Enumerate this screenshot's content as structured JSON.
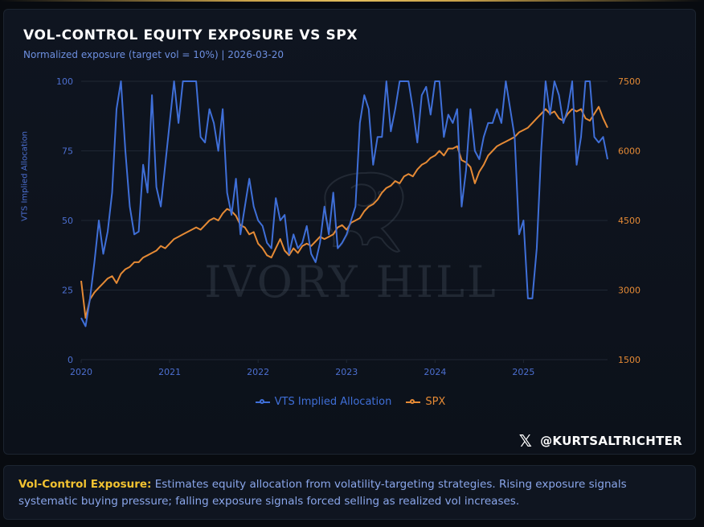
{
  "header": {
    "title": "VOL-CONTROL EQUITY EXPOSURE VS SPX",
    "subtitle": "Normalized exposure (target vol = 10%) | 2026-03-20"
  },
  "watermark": "IVORY HILL",
  "footer": {
    "handle": "@KURTSALTRICHTER",
    "x_icon": "x-logo-icon"
  },
  "note": {
    "key": "Vol-Control Exposure:",
    "text": " Estimates equity allocation from volatility-targeting strategies. Rising exposure signals systematic buying pressure; falling exposure signals forced selling as realized vol increases."
  },
  "colors": {
    "vts": "#3f6fd8",
    "spx": "#e58a35",
    "grid": "#1f2733",
    "left_axis": "#4c6fd0",
    "right_axis": "#e58a35",
    "x_axis": "#4c6fd0"
  },
  "chart_data": {
    "type": "line",
    "title": "VOL-CONTROL EQUITY EXPOSURE VS SPX",
    "subtitle": "Normalized exposure (target vol = 10%) | 2026-03-20",
    "xlabel": "",
    "ylabel_left": "VTS Implied Allocation",
    "ylabel_right": "",
    "x_ticks": [
      "2020",
      "2021",
      "2022",
      "2023",
      "2024",
      "2025"
    ],
    "x_range": [
      2020.0,
      2025.95
    ],
    "y_left_ticks": [
      0,
      25,
      50,
      75,
      100
    ],
    "y_left_range": [
      0,
      100
    ],
    "y_right_ticks": [
      1500,
      3000,
      4500,
      6000,
      7500
    ],
    "y_right_range": [
      1500,
      7500
    ],
    "grid": "horizontal",
    "legend_position": "bottom-center",
    "series": [
      {
        "name": "VTS Implied Allocation",
        "axis": "left",
        "x": [
          2020.0,
          2020.05,
          2020.1,
          2020.15,
          2020.2,
          2020.25,
          2020.3,
          2020.35,
          2020.4,
          2020.45,
          2020.5,
          2020.55,
          2020.6,
          2020.65,
          2020.7,
          2020.75,
          2020.8,
          2020.85,
          2020.9,
          2020.95,
          2021.0,
          2021.05,
          2021.1,
          2021.15,
          2021.2,
          2021.25,
          2021.3,
          2021.35,
          2021.4,
          2021.45,
          2021.5,
          2021.55,
          2021.6,
          2021.65,
          2021.7,
          2021.75,
          2021.8,
          2021.85,
          2021.9,
          2021.95,
          2022.0,
          2022.05,
          2022.1,
          2022.15,
          2022.2,
          2022.25,
          2022.3,
          2022.35,
          2022.4,
          2022.45,
          2022.5,
          2022.55,
          2022.6,
          2022.65,
          2022.7,
          2022.75,
          2022.8,
          2022.85,
          2022.9,
          2022.95,
          2023.0,
          2023.05,
          2023.1,
          2023.15,
          2023.2,
          2023.25,
          2023.3,
          2023.35,
          2023.4,
          2023.45,
          2023.5,
          2023.55,
          2023.6,
          2023.65,
          2023.7,
          2023.75,
          2023.8,
          2023.85,
          2023.9,
          2023.95,
          2024.0,
          2024.05,
          2024.1,
          2024.15,
          2024.2,
          2024.25,
          2024.3,
          2024.35,
          2024.4,
          2024.45,
          2024.5,
          2024.55,
          2024.6,
          2024.65,
          2024.7,
          2024.75,
          2024.8,
          2024.85,
          2024.9,
          2024.95,
          2025.0,
          2025.05,
          2025.1,
          2025.15,
          2025.2,
          2025.25,
          2025.3,
          2025.35,
          2025.4,
          2025.45,
          2025.5,
          2025.55,
          2025.6,
          2025.65,
          2025.7,
          2025.75,
          2025.8,
          2025.85,
          2025.9,
          2025.95
        ],
        "values": [
          15,
          12,
          22,
          35,
          50,
          38,
          46,
          60,
          90,
          100,
          75,
          55,
          45,
          46,
          70,
          60,
          95,
          62,
          55,
          70,
          85,
          100,
          85,
          100,
          100,
          100,
          100,
          80,
          78,
          90,
          85,
          75,
          90,
          60,
          52,
          65,
          45,
          55,
          65,
          55,
          50,
          48,
          42,
          40,
          58,
          50,
          52,
          38,
          45,
          40,
          42,
          48,
          38,
          35,
          42,
          55,
          45,
          60,
          40,
          42,
          45,
          50,
          55,
          85,
          95,
          90,
          70,
          80,
          80,
          100,
          82,
          90,
          100,
          100,
          100,
          90,
          78,
          95,
          98,
          88,
          100,
          100,
          80,
          88,
          85,
          90,
          55,
          68,
          90,
          75,
          72,
          80,
          85,
          85,
          90,
          85,
          100,
          90,
          80,
          45,
          50,
          22,
          22,
          40,
          75,
          100,
          88,
          100,
          95,
          85,
          90,
          100,
          70,
          80,
          100,
          100,
          80,
          78,
          80,
          72
        ]
      },
      {
        "name": "SPX",
        "axis": "right",
        "x": [
          2020.0,
          2020.05,
          2020.1,
          2020.15,
          2020.2,
          2020.25,
          2020.3,
          2020.35,
          2020.4,
          2020.45,
          2020.5,
          2020.55,
          2020.6,
          2020.65,
          2020.7,
          2020.75,
          2020.8,
          2020.85,
          2020.9,
          2020.95,
          2021.0,
          2021.05,
          2021.1,
          2021.15,
          2021.2,
          2021.25,
          2021.3,
          2021.35,
          2021.4,
          2021.45,
          2021.5,
          2021.55,
          2021.6,
          2021.65,
          2021.7,
          2021.75,
          2021.8,
          2021.85,
          2021.9,
          2021.95,
          2022.0,
          2022.05,
          2022.1,
          2022.15,
          2022.2,
          2022.25,
          2022.3,
          2022.35,
          2022.4,
          2022.45,
          2022.5,
          2022.55,
          2022.6,
          2022.65,
          2022.7,
          2022.75,
          2022.8,
          2022.85,
          2022.9,
          2022.95,
          2023.0,
          2023.05,
          2023.1,
          2023.15,
          2023.2,
          2023.25,
          2023.3,
          2023.35,
          2023.4,
          2023.45,
          2023.5,
          2023.55,
          2023.6,
          2023.65,
          2023.7,
          2023.75,
          2023.8,
          2023.85,
          2023.9,
          2023.95,
          2024.0,
          2024.05,
          2024.1,
          2024.15,
          2024.2,
          2024.25,
          2024.3,
          2024.35,
          2024.4,
          2024.45,
          2024.5,
          2024.55,
          2024.6,
          2024.65,
          2024.7,
          2024.75,
          2024.8,
          2024.85,
          2024.9,
          2024.95,
          2025.0,
          2025.05,
          2025.1,
          2025.15,
          2025.2,
          2025.25,
          2025.3,
          2025.35,
          2025.4,
          2025.45,
          2025.5,
          2025.55,
          2025.6,
          2025.65,
          2025.7,
          2025.75,
          2025.8,
          2025.85,
          2025.9,
          2025.95
        ],
        "values": [
          3200,
          2400,
          2800,
          2950,
          3050,
          3150,
          3250,
          3300,
          3150,
          3350,
          3450,
          3500,
          3600,
          3600,
          3700,
          3750,
          3800,
          3850,
          3950,
          3900,
          4000,
          4100,
          4150,
          4200,
          4250,
          4300,
          4350,
          4300,
          4400,
          4500,
          4550,
          4500,
          4650,
          4750,
          4700,
          4600,
          4400,
          4350,
          4200,
          4250,
          4000,
          3900,
          3750,
          3700,
          3900,
          4100,
          3850,
          3750,
          3900,
          3800,
          3950,
          4000,
          3950,
          4050,
          4150,
          4100,
          4150,
          4200,
          4350,
          4400,
          4300,
          4450,
          4500,
          4550,
          4700,
          4800,
          4850,
          4950,
          5100,
          5200,
          5250,
          5350,
          5300,
          5450,
          5500,
          5450,
          5600,
          5700,
          5750,
          5850,
          5900,
          6000,
          5900,
          6050,
          6050,
          6100,
          5800,
          5750,
          5650,
          5300,
          5550,
          5700,
          5900,
          6000,
          6100,
          6150,
          6200,
          6250,
          6300,
          6400,
          6450,
          6500,
          6600,
          6700,
          6800,
          6900,
          6800,
          6850,
          6700,
          6650,
          6800,
          6900,
          6850,
          6900,
          6700,
          6650,
          6800,
          6950,
          6700,
          6500
        ]
      }
    ]
  }
}
